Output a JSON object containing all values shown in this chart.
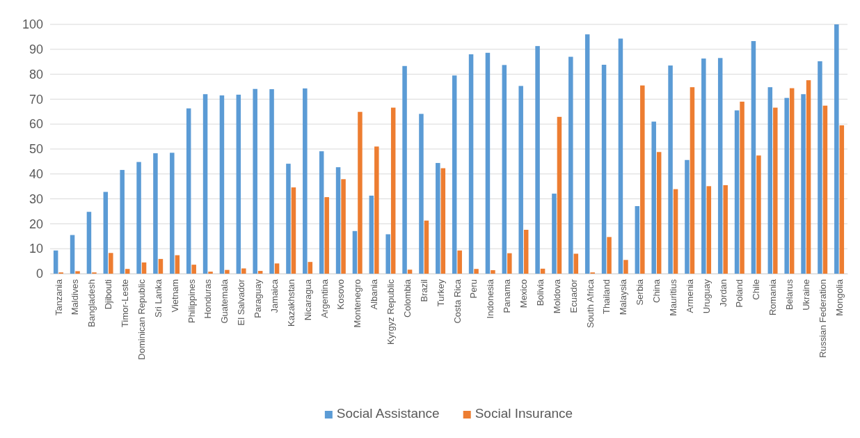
{
  "chart_data": {
    "type": "bar",
    "categories": [
      "Tanzania",
      "Maldives",
      "Bangladesh",
      "Djibouti",
      "Timor-Leste",
      "Dominican Republic",
      "Sri Lanka",
      "Vietnam",
      "Philippines",
      "Honduras",
      "Guatemala",
      "El Salvador",
      "Paraguay",
      "Jamaica",
      "Kazakhstan",
      "Nicaragua",
      "Argentina",
      "Kosovo",
      "Montenegro",
      "Albania",
      "Kyrgyz Republic",
      "Colombia",
      "Brazil",
      "Turkey",
      "Costa Rica",
      "Peru",
      "Indonesia",
      "Panama",
      "Mexico",
      "Bolivia",
      "Moldova",
      "Ecuador",
      "South Africa",
      "Thailand",
      "Malaysia",
      "Serbia",
      "China",
      "Mauritius",
      "Armenia",
      "Uruguay",
      "Jordan",
      "Poland",
      "Chile",
      "Romania",
      "Belarus",
      "Ukraine",
      "Russian Federation",
      "Mongolia"
    ],
    "series": [
      {
        "name": "Social Assistance",
        "color": "#5b9bd5",
        "values": [
          9.3,
          15.5,
          24.8,
          32.8,
          41.6,
          44.8,
          48.3,
          48.5,
          66.3,
          72.0,
          71.5,
          71.8,
          74.1,
          74.0,
          44.1,
          74.3,
          49.1,
          42.7,
          17.1,
          31.3,
          15.8,
          83.3,
          64.1,
          44.4,
          79.5,
          88.0,
          88.6,
          83.7,
          75.3,
          91.3,
          32.1,
          87.0,
          96.0,
          83.8,
          94.3,
          27.1,
          61.0,
          83.5,
          45.6,
          86.3,
          86.5,
          65.5,
          93.3,
          74.8,
          70.5,
          72.0,
          85.2,
          100
        ]
      },
      {
        "name": "Social Insurance",
        "color": "#ed7d31",
        "values": [
          0.5,
          1.0,
          0.5,
          8.3,
          1.9,
          4.5,
          5.9,
          7.4,
          3.6,
          0.8,
          1.5,
          2.1,
          1.1,
          4.1,
          34.6,
          4.7,
          30.7,
          37.9,
          64.9,
          51.0,
          66.6,
          1.6,
          21.3,
          42.3,
          9.3,
          1.9,
          1.4,
          8.2,
          17.6,
          2.0,
          62.9,
          8.0,
          0.5,
          14.7,
          5.5,
          75.5,
          48.8,
          33.9,
          74.8,
          35.1,
          35.5,
          69.0,
          47.4,
          66.6,
          74.4,
          77.6,
          67.4,
          59.5
        ]
      }
    ],
    "ylim": [
      0,
      100
    ],
    "yticks": [
      0,
      10,
      20,
      30,
      40,
      50,
      60,
      70,
      80,
      90,
      100
    ],
    "grid": "y",
    "legend": "bottom"
  }
}
